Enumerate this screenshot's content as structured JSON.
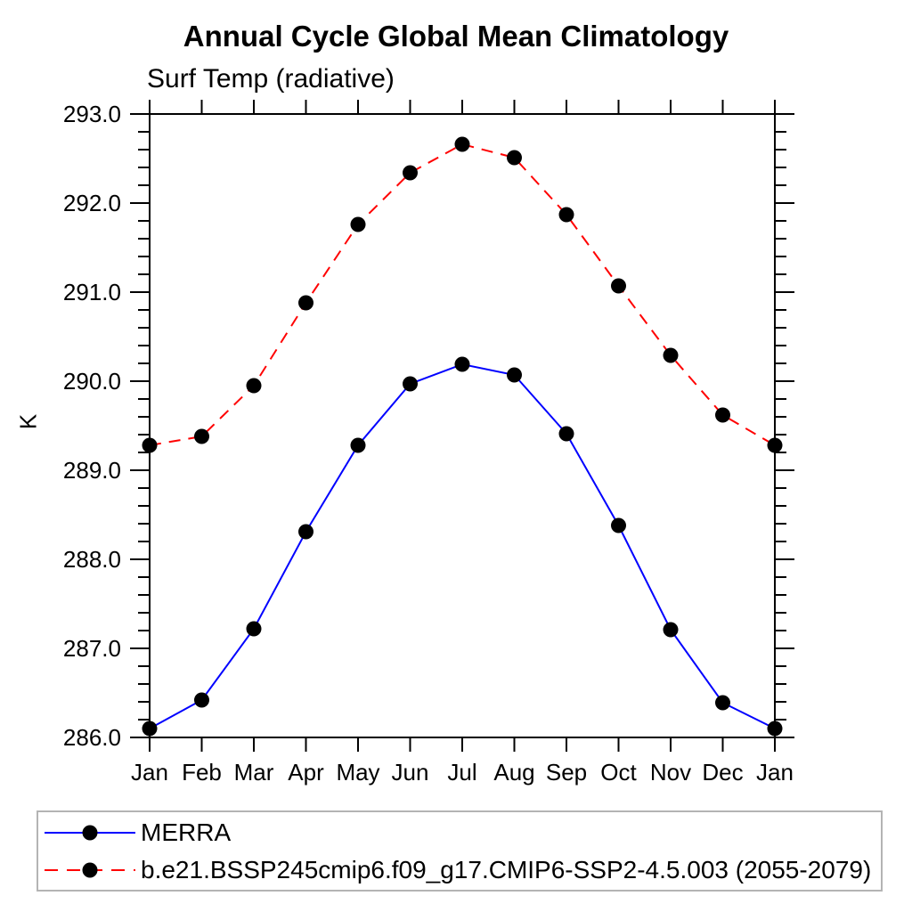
{
  "chart_data": {
    "type": "line",
    "title": "Annual Cycle Global Mean Climatology",
    "subtitle": "Surf Temp (radiative)",
    "ylabel": "K",
    "xlabel": "",
    "categories": [
      "Jan",
      "Feb",
      "Mar",
      "Apr",
      "May",
      "Jun",
      "Jul",
      "Aug",
      "Sep",
      "Oct",
      "Nov",
      "Dec",
      "Jan"
    ],
    "ylim": [
      286.0,
      293.0
    ],
    "ytick_major_interval": 1.0,
    "ytick_minor_interval": 0.2,
    "grid": false,
    "legend_position": "bottom",
    "series": [
      {
        "name": "MERRA",
        "color": "#0000ff",
        "line_style": "solid",
        "marker": "filled-circle",
        "marker_color": "#000000",
        "values": [
          286.1,
          286.42,
          287.22,
          288.31,
          289.28,
          289.97,
          290.19,
          290.07,
          289.41,
          288.38,
          287.21,
          286.39,
          286.1
        ]
      },
      {
        "name": "b.e21.BSSP245cmip6.f09_g17.CMIP6-SSP2-4.5.003 (2055-2079)",
        "color": "#ff0000",
        "line_style": "dashed",
        "marker": "filled-circle",
        "marker_color": "#000000",
        "values": [
          289.28,
          289.38,
          289.95,
          290.88,
          291.76,
          292.34,
          292.66,
          292.51,
          291.87,
          291.07,
          290.29,
          289.62,
          289.28
        ]
      }
    ]
  }
}
